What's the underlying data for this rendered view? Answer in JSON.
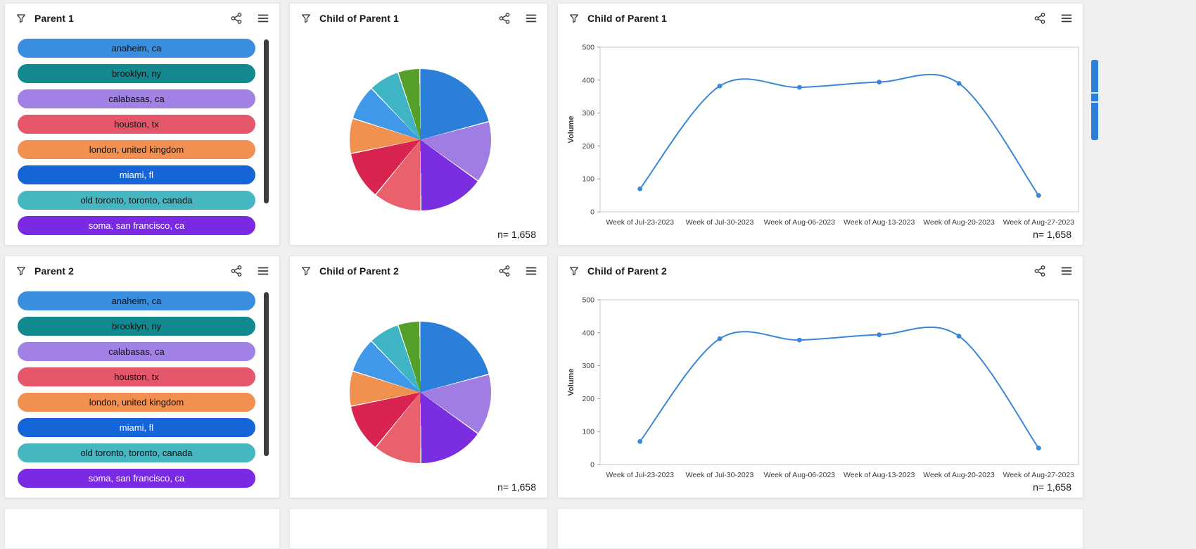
{
  "panels": [
    {
      "title": "Parent 1"
    },
    {
      "title": "Child of Parent 1"
    },
    {
      "title": "Child of Parent 1"
    },
    {
      "title": "Parent 2"
    },
    {
      "title": "Child of Parent 2"
    },
    {
      "title": "Child of Parent 2"
    }
  ],
  "filter_items": [
    {
      "label": "anaheim, ca",
      "color": "#3a8ee0",
      "text_color": "#111111"
    },
    {
      "label": "brooklyn, ny",
      "color": "#11898f",
      "text_color": "#111111"
    },
    {
      "label": "calabasas, ca",
      "color": "#a181e3",
      "text_color": "#111111"
    },
    {
      "label": "houston, tx",
      "color": "#e5566b",
      "text_color": "#111111"
    },
    {
      "label": "london, united kingdom",
      "color": "#f19050",
      "text_color": "#111111"
    },
    {
      "label": "miami, fl",
      "color": "#1565d8",
      "text_color": "#ffffff"
    },
    {
      "label": "old toronto, toronto, canada",
      "color": "#46b6c0",
      "text_color": "#111111"
    },
    {
      "label": "soma, san francisco, ca",
      "color": "#7a2ae2",
      "text_color": "#ffffff"
    }
  ],
  "chart_data": [
    {
      "type": "pie",
      "title": "Child of Parent 1",
      "n_label": "n= 1,658",
      "slices": [
        {
          "value": 21,
          "color": "#2b7fd9"
        },
        {
          "value": 14,
          "color": "#9f7de3"
        },
        {
          "value": 15,
          "color": "#7b2ee0"
        },
        {
          "value": 11,
          "color": "#e8616c"
        },
        {
          "value": 11,
          "color": "#d8244e"
        },
        {
          "value": 8,
          "color": "#f0914f"
        },
        {
          "value": 8,
          "color": "#3f99e8"
        },
        {
          "value": 7,
          "color": "#3fb4c4"
        },
        {
          "value": 5,
          "color": "#55a02a"
        }
      ]
    },
    {
      "type": "line",
      "title": "Child of Parent 1",
      "n_label": "n= 1,658",
      "ylabel": "Volume",
      "ylim": [
        0,
        500
      ],
      "yticks": [
        0,
        100,
        200,
        300,
        400,
        500
      ],
      "color": "#3a87d9",
      "x": [
        "Week of Jul-23-2023",
        "Week of Jul-30-2023",
        "Week of Aug-06-2023",
        "Week of Aug-13-2023",
        "Week of Aug-20-2023",
        "Week of Aug-27-2023"
      ],
      "y": [
        70,
        382,
        378,
        394,
        390,
        50
      ]
    },
    {
      "type": "pie",
      "title": "Child of Parent 2",
      "n_label": "n= 1,658",
      "slices": [
        {
          "value": 21,
          "color": "#2b7fd9"
        },
        {
          "value": 14,
          "color": "#9f7de3"
        },
        {
          "value": 15,
          "color": "#7b2ee0"
        },
        {
          "value": 11,
          "color": "#e8616c"
        },
        {
          "value": 11,
          "color": "#d8244e"
        },
        {
          "value": 8,
          "color": "#f0914f"
        },
        {
          "value": 8,
          "color": "#3f99e8"
        },
        {
          "value": 7,
          "color": "#3fb4c4"
        },
        {
          "value": 5,
          "color": "#55a02a"
        }
      ]
    },
    {
      "type": "line",
      "title": "Child of Parent 2",
      "n_label": "n= 1,658",
      "ylabel": "Volume",
      "ylim": [
        0,
        500
      ],
      "yticks": [
        0,
        100,
        200,
        300,
        400,
        500
      ],
      "color": "#3a87d9",
      "x": [
        "Week of Jul-23-2023",
        "Week of Jul-30-2023",
        "Week of Aug-06-2023",
        "Week of Aug-13-2023",
        "Week of Aug-20-2023",
        "Week of Aug-27-2023"
      ],
      "y": [
        70,
        382,
        378,
        394,
        390,
        50
      ]
    }
  ]
}
